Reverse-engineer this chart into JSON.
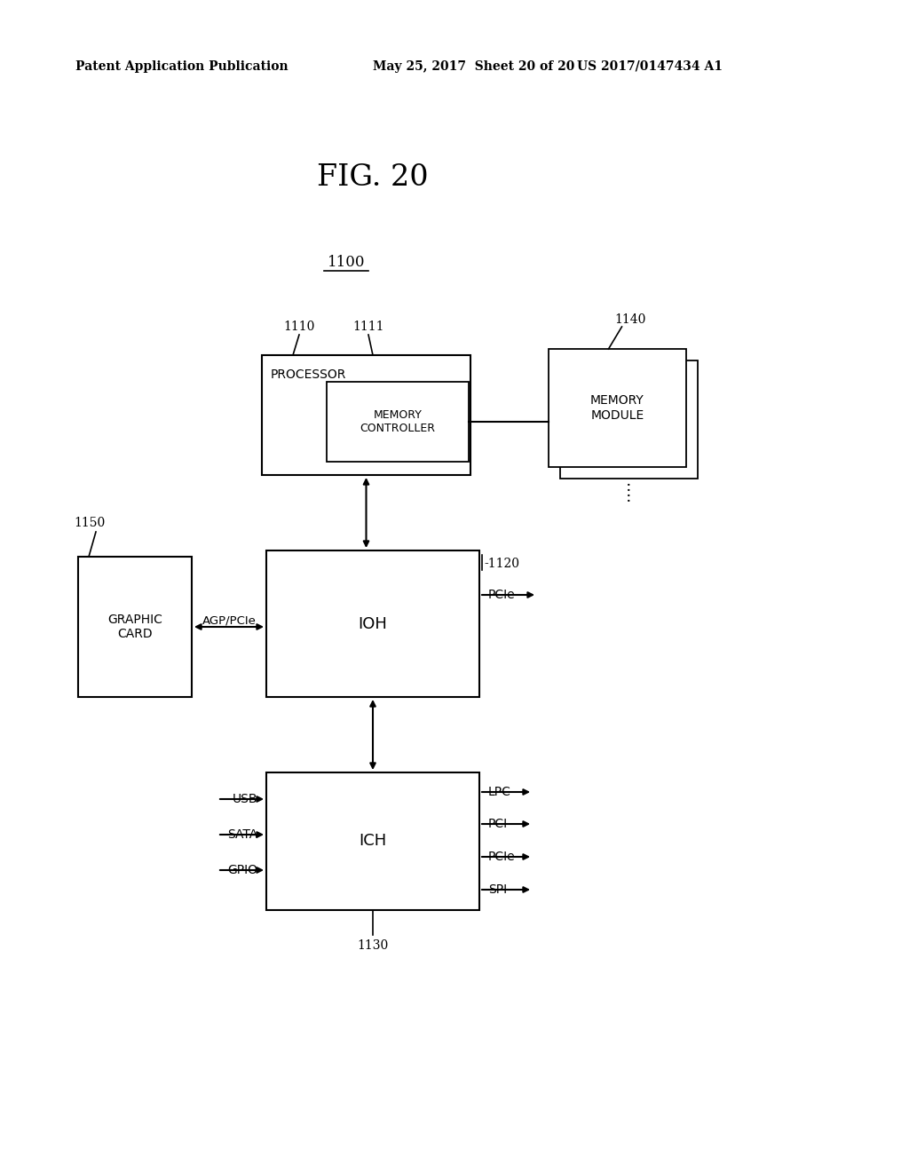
{
  "bg_color": "#ffffff",
  "line_color": "#000000",
  "header_left": "Patent Application Publication",
  "header_mid": "May 25, 2017  Sheet 20 of 20",
  "header_right": "US 2017/0147434 A1",
  "fig_title": "FIG. 20",
  "label_1100": "1100",
  "label_1110": "1110",
  "label_1111": "1111",
  "label_1120": "-1120",
  "label_1130": "1130",
  "label_1140": "1140",
  "label_1150": "1150",
  "processor_label": "PROCESSOR",
  "memctrl_label": "MEMORY\nCONTROLLER",
  "ioh_label": "IOH",
  "ich_label": "ICH",
  "memory_module_label": "MEMORY\nMODULE",
  "graphic_card_label": "GRAPHIC\nCARD",
  "agp_pcie_label": "AGP/PCIe",
  "pcie_label_ioh": "PCIe",
  "usb_label": "USB",
  "sata_label": "SATA",
  "gpio_label": "GPIO",
  "lpc_label": "LPC",
  "pci_label": "PCI",
  "pcie_label_ich": "PCIe",
  "spi_label": "SPI",
  "dots": ":"
}
